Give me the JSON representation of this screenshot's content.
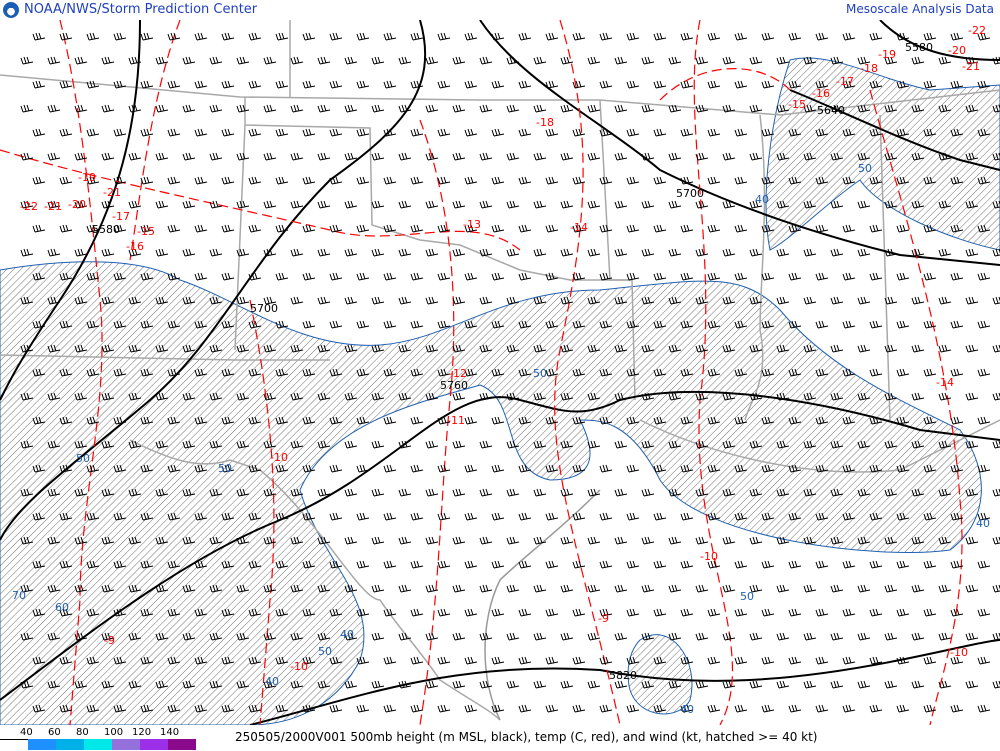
{
  "header": {
    "title_left": "NOAA/NWS/Storm Prediction Center",
    "title_right": "Mesoscale Analysis Data",
    "logo": "noaa-logo"
  },
  "footer": {
    "legend": {
      "labels": [
        "40",
        "60",
        "80",
        "100",
        "120",
        "140"
      ],
      "colors": [
        "#ffffff",
        "#1e90ff",
        "#00b0e8",
        "#00e8e8",
        "#9370db",
        "#9b30e8",
        "#8b0a8b"
      ]
    },
    "caption": "250505/2000V001 500mb height (m MSL, black), temp (C, red), and wind (kt, hatched >= 40 kt)"
  },
  "colors": {
    "height": "#000000",
    "temp": "#ff0000",
    "isotach": "#2060b0",
    "borders": "#a0a0a0",
    "hatch": "#606060"
  },
  "height_labels": [
    "5580",
    "5700",
    "5760",
    "5700",
    "5640",
    "5580",
    "5820"
  ],
  "temp_labels": [
    "-19",
    "-22",
    "-21",
    "-20",
    "-21",
    "-17",
    "-16",
    "-15",
    "-18",
    "-13",
    "-14",
    "-12",
    "-11",
    "-10",
    "-10",
    "-9",
    "-10",
    "-19",
    "-20",
    "-21",
    "-22",
    "-18",
    "-17",
    "-16",
    "-15",
    "-14",
    "-10",
    "-9"
  ],
  "isotach_labels": [
    "50",
    "50",
    "50",
    "40",
    "40",
    "70",
    "60",
    "50",
    "50",
    "40",
    "40",
    "40",
    "50"
  ]
}
